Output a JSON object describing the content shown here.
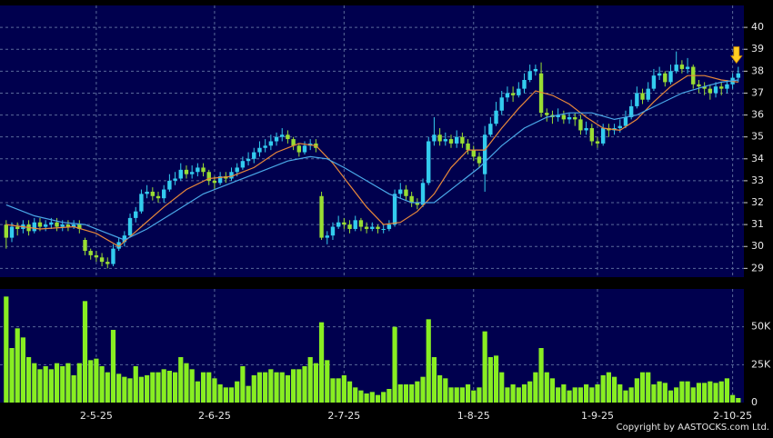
{
  "chart_data": {
    "type": "candlestick",
    "up_color": "#33ccee",
    "down_color": "#99dd33",
    "grid": true,
    "xlim": [
      -1.1,
      131
    ],
    "xticks": [
      {
        "value": 16,
        "label": "2-5-25"
      },
      {
        "value": 37,
        "label": "2-6-25"
      },
      {
        "value": 60,
        "label": "2-7-25"
      },
      {
        "value": 83,
        "label": "1-8-25"
      },
      {
        "value": 105,
        "label": "1-9-25"
      },
      {
        "value": 129,
        "label": "2-10-25"
      }
    ],
    "ylim": [
      28.6,
      41.0
    ],
    "yticks": [
      29,
      30,
      31,
      32,
      33,
      34,
      35,
      36,
      37,
      38,
      39,
      40
    ],
    "open": [
      31.0,
      30.4,
      30.9,
      30.8,
      31.0,
      30.7,
      31.1,
      30.9,
      31.0,
      31.1,
      30.9,
      31.0,
      30.9,
      31.0,
      30.3,
      29.8,
      29.6,
      29.5,
      29.3,
      29.2,
      29.9,
      30.2,
      30.5,
      31.3,
      31.6,
      32.4,
      32.5,
      32.3,
      32.2,
      32.6,
      33.0,
      33.1,
      33.5,
      33.3,
      33.4,
      33.6,
      33.4,
      33.0,
      32.9,
      33.2,
      33.1,
      33.4,
      33.6,
      33.9,
      34.0,
      34.3,
      34.5,
      34.6,
      34.8,
      35.0,
      35.1,
      34.9,
      34.6,
      34.3,
      34.6,
      34.7,
      32.3,
      30.4,
      30.5,
      30.9,
      31.1,
      31.0,
      30.8,
      31.2,
      30.9,
      30.8,
      30.9,
      30.8,
      30.8,
      31.0,
      32.4,
      32.6,
      32.3,
      32.0,
      31.9,
      32.9,
      34.8,
      35.1,
      34.8,
      34.9,
      34.7,
      35.0,
      34.7,
      34.4,
      34.1,
      33.3,
      35.1,
      35.6,
      36.2,
      36.8,
      37.0,
      36.9,
      37.2,
      37.6,
      38.0,
      37.9,
      36.1,
      36.0,
      35.9,
      36.0,
      35.8,
      35.9,
      35.8,
      35.3,
      35.4,
      34.8,
      34.7,
      35.4,
      35.3,
      35.4,
      35.5,
      35.9,
      36.4,
      37.0,
      36.7,
      37.2,
      37.8,
      37.9,
      37.5,
      38.0,
      38.3,
      38.1,
      38.2,
      37.4,
      37.3,
      37.2,
      37.0,
      37.3,
      37.2,
      37.4,
      37.7
    ],
    "high": [
      31.2,
      31.1,
      31.1,
      31.2,
      31.2,
      31.3,
      31.3,
      31.2,
      31.3,
      31.3,
      31.2,
      31.2,
      31.2,
      31.2,
      30.4,
      29.9,
      29.8,
      29.7,
      29.5,
      30.1,
      30.4,
      30.7,
      31.5,
      31.8,
      32.6,
      32.8,
      32.7,
      32.5,
      32.8,
      33.3,
      33.4,
      33.8,
      33.7,
      33.7,
      33.8,
      33.8,
      33.5,
      33.2,
      33.4,
      33.4,
      33.6,
      33.8,
      34.1,
      34.3,
      34.5,
      34.8,
      34.9,
      35.1,
      35.2,
      35.4,
      35.3,
      35.0,
      34.7,
      34.8,
      34.9,
      34.9,
      32.5,
      30.7,
      31.1,
      31.4,
      31.3,
      31.2,
      31.4,
      31.3,
      31.1,
      31.1,
      31.0,
      31.0,
      31.2,
      32.6,
      32.9,
      32.8,
      32.5,
      32.2,
      33.1,
      35.0,
      35.9,
      35.4,
      35.2,
      35.1,
      35.3,
      35.2,
      34.9,
      34.6,
      34.3,
      35.5,
      35.9,
      36.6,
      37.1,
      37.3,
      37.3,
      37.5,
      37.9,
      38.3,
      38.3,
      38.4,
      36.3,
      36.2,
      36.3,
      36.2,
      36.1,
      36.1,
      36.0,
      35.7,
      35.6,
      35.0,
      35.6,
      35.6,
      35.6,
      35.8,
      36.2,
      36.7,
      37.3,
      37.2,
      37.5,
      38.1,
      38.2,
      38.0,
      38.3,
      38.9,
      38.5,
      38.6,
      38.3,
      37.6,
      37.5,
      37.4,
      37.5,
      37.5,
      37.6,
      37.9,
      38.2
    ],
    "low": [
      29.9,
      30.2,
      30.5,
      30.6,
      30.5,
      30.6,
      30.7,
      30.7,
      30.8,
      30.7,
      30.7,
      30.7,
      30.8,
      30.6,
      29.6,
      29.4,
      29.3,
      29.1,
      29.0,
      29.1,
      29.8,
      30.0,
      30.4,
      31.1,
      31.5,
      32.2,
      32.1,
      32.0,
      32.0,
      32.5,
      32.8,
      33.0,
      33.1,
      33.1,
      33.2,
      33.2,
      32.8,
      32.6,
      32.8,
      32.9,
      33.0,
      33.2,
      33.5,
      33.7,
      33.8,
      34.1,
      34.3,
      34.4,
      34.6,
      34.8,
      34.7,
      34.4,
      34.1,
      34.2,
      34.4,
      34.3,
      30.3,
      30.1,
      30.3,
      30.8,
      30.8,
      30.6,
      30.7,
      30.7,
      30.6,
      30.7,
      30.6,
      30.6,
      30.7,
      30.9,
      32.2,
      32.1,
      31.8,
      31.7,
      31.8,
      32.8,
      34.6,
      34.6,
      34.6,
      34.5,
      34.5,
      34.5,
      34.2,
      33.9,
      33.6,
      32.5,
      35.0,
      35.5,
      36.0,
      36.6,
      36.6,
      36.8,
      37.0,
      37.5,
      37.8,
      35.9,
      35.7,
      35.6,
      35.7,
      35.6,
      35.6,
      35.5,
      35.1,
      35.1,
      34.6,
      34.5,
      34.6,
      35.0,
      35.1,
      35.2,
      35.4,
      35.8,
      36.3,
      36.5,
      36.6,
      37.1,
      37.6,
      37.3,
      37.4,
      37.9,
      37.9,
      37.9,
      37.2,
      37.0,
      36.9,
      36.7,
      36.8,
      36.9,
      37.0,
      37.2,
      37.5
    ],
    "close": [
      30.4,
      30.9,
      30.8,
      31.0,
      30.7,
      31.1,
      30.9,
      31.0,
      31.1,
      30.9,
      31.0,
      30.9,
      31.0,
      30.8,
      29.8,
      29.6,
      29.5,
      29.3,
      29.2,
      29.9,
      30.2,
      30.5,
      31.3,
      31.6,
      32.4,
      32.5,
      32.3,
      32.2,
      32.6,
      33.0,
      33.1,
      33.5,
      33.3,
      33.4,
      33.6,
      33.4,
      33.0,
      32.9,
      33.2,
      33.1,
      33.4,
      33.6,
      33.9,
      34.0,
      34.3,
      34.5,
      34.6,
      34.8,
      35.0,
      35.1,
      34.9,
      34.6,
      34.3,
      34.6,
      34.7,
      34.5,
      30.4,
      30.5,
      30.9,
      31.1,
      31.0,
      30.8,
      31.2,
      30.9,
      30.8,
      30.9,
      30.8,
      30.8,
      31.0,
      32.4,
      32.6,
      32.3,
      32.0,
      31.9,
      32.9,
      34.8,
      35.1,
      34.8,
      34.9,
      34.7,
      35.0,
      34.7,
      34.4,
      34.1,
      33.8,
      35.1,
      35.6,
      36.2,
      36.8,
      37.0,
      36.9,
      37.2,
      37.6,
      38.0,
      38.1,
      36.1,
      36.0,
      35.9,
      36.0,
      35.8,
      35.9,
      35.8,
      35.3,
      35.4,
      34.8,
      34.7,
      35.4,
      35.3,
      35.4,
      35.5,
      35.9,
      36.4,
      37.0,
      36.7,
      37.2,
      37.8,
      37.9,
      37.5,
      38.0,
      38.3,
      38.1,
      38.2,
      37.4,
      37.3,
      37.2,
      37.0,
      37.3,
      37.2,
      37.4,
      37.7,
      37.9
    ],
    "moving_averages": [
      {
        "color": "#e8883a",
        "x": [
          0,
          6,
          12,
          16,
          20,
          24,
          28,
          32,
          36,
          40,
          44,
          48,
          52,
          55,
          58,
          61,
          64,
          67,
          70,
          73,
          76,
          79,
          82,
          85,
          88,
          91,
          94,
          97,
          100,
          103,
          106,
          109,
          112,
          115,
          118,
          121,
          124,
          127,
          130
        ],
        "values": [
          31.0,
          30.8,
          30.9,
          30.6,
          30.0,
          30.9,
          31.8,
          32.6,
          33.1,
          33.2,
          33.6,
          34.3,
          34.7,
          34.6,
          33.8,
          32.8,
          31.8,
          31.0,
          31.1,
          31.6,
          32.4,
          33.6,
          34.4,
          34.4,
          35.4,
          36.3,
          37.1,
          36.9,
          36.5,
          35.9,
          35.4,
          35.3,
          35.8,
          36.6,
          37.3,
          37.8,
          37.8,
          37.6,
          37.5
        ]
      },
      {
        "color": "#4aa8e8",
        "x": [
          0,
          5,
          10,
          14,
          18,
          21,
          25,
          30,
          35,
          40,
          45,
          50,
          54,
          57,
          60,
          64,
          68,
          72,
          76,
          80,
          84,
          88,
          92,
          96,
          100,
          104,
          108,
          112,
          116,
          120,
          124,
          127,
          130
        ],
        "values": [
          31.9,
          31.4,
          31.1,
          31.0,
          30.6,
          30.3,
          30.8,
          31.6,
          32.4,
          32.9,
          33.4,
          33.9,
          34.1,
          34.0,
          33.6,
          33.0,
          32.4,
          32.0,
          32.0,
          32.8,
          33.6,
          34.6,
          35.4,
          35.9,
          36.1,
          36.1,
          35.8,
          36.0,
          36.5,
          37.0,
          37.3,
          37.5,
          37.6
        ]
      }
    ],
    "volume": {
      "type": "bar",
      "color": "#88ee22",
      "ylim": [
        0,
        75000
      ],
      "yticks": [
        0,
        {
          "value": 25000,
          "label": "25K"
        },
        {
          "value": 50000,
          "label": "50K"
        }
      ],
      "values": [
        70000,
        36000,
        49000,
        43000,
        30000,
        26000,
        22000,
        24000,
        22000,
        26000,
        24000,
        26000,
        18000,
        26000,
        67000,
        28000,
        29000,
        24000,
        20000,
        48000,
        19000,
        17000,
        16000,
        24000,
        17000,
        18000,
        20000,
        20000,
        22000,
        21000,
        20000,
        30000,
        26000,
        22000,
        14000,
        20000,
        20000,
        16000,
        12000,
        10000,
        10000,
        14000,
        24000,
        11000,
        18000,
        20000,
        20000,
        22000,
        20000,
        20000,
        18000,
        22000,
        22000,
        24000,
        30000,
        26000,
        53000,
        28000,
        16000,
        16000,
        18000,
        14000,
        10000,
        8000,
        6000,
        7000,
        5000,
        7000,
        9000,
        50000,
        12000,
        12000,
        12000,
        14000,
        17000,
        55000,
        30000,
        18000,
        16000,
        10000,
        10000,
        10000,
        12000,
        8000,
        10000,
        47000,
        30000,
        31000,
        20000,
        10000,
        12000,
        10000,
        12000,
        14000,
        20000,
        36000,
        20000,
        16000,
        10000,
        12000,
        8000,
        10000,
        10000,
        12000,
        10000,
        12000,
        18000,
        20000,
        17000,
        12000,
        8000,
        10000,
        16000,
        20000,
        20000,
        12000,
        14000,
        13000,
        8000,
        10000,
        14000,
        14000,
        10000,
        13000,
        13000,
        14000,
        13000,
        14000,
        16000,
        5000,
        3000
      ]
    },
    "footer": "Copyright by AASTOCKS.com Ltd."
  }
}
